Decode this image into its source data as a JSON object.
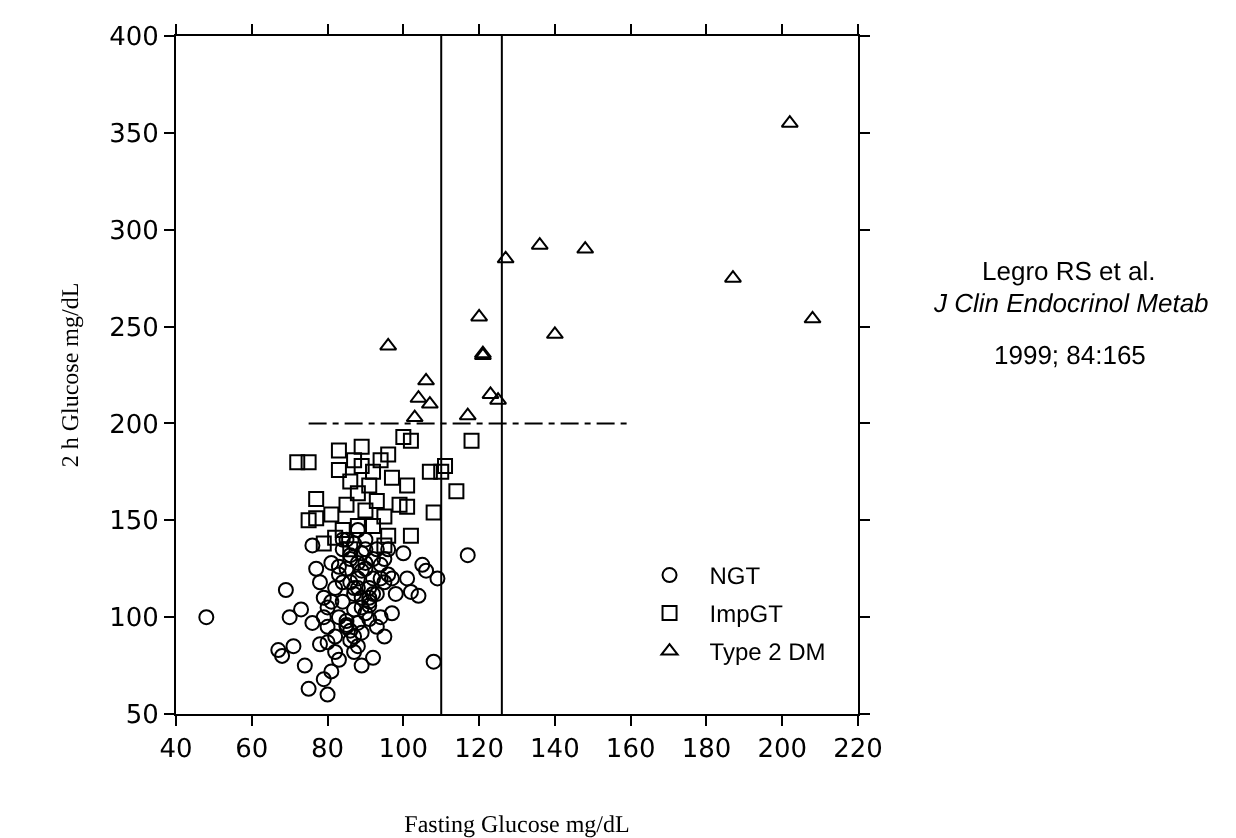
{
  "chart_data": {
    "type": "scatter",
    "xlabel": "Fasting Glucose mg/dL",
    "ylabel": "2 h Glucose mg/dL",
    "xlim": [
      40,
      220
    ],
    "xticks": [
      40,
      60,
      80,
      100,
      120,
      140,
      160,
      180,
      200,
      220
    ],
    "ylim": [
      50,
      400
    ],
    "yticks": [
      50,
      100,
      150,
      200,
      250,
      300,
      350,
      400
    ],
    "grid": false,
    "legend": "bottom right",
    "series": [
      {
        "name": "NGT",
        "color": "#000000",
        "marker": "circle",
        "x": [
          48,
          68,
          67,
          69,
          70,
          71,
          73,
          74,
          75,
          76,
          78,
          79,
          80,
          81,
          83,
          92,
          95,
          97,
          98,
          100,
          101,
          102,
          104,
          105,
          106,
          109,
          108,
          117,
          97,
          95,
          93,
          76,
          77,
          78,
          79,
          80,
          80,
          81,
          82,
          82,
          83,
          83,
          84,
          84,
          85,
          85,
          85,
          86,
          86,
          86,
          87,
          87,
          87,
          88,
          88,
          88,
          88,
          89,
          89,
          89,
          90,
          90,
          90,
          91,
          91,
          91,
          92,
          92,
          93,
          93,
          94,
          94,
          95,
          96,
          96,
          84,
          86,
          88,
          90,
          82,
          84,
          87,
          89,
          91,
          80,
          83,
          85,
          87,
          89,
          79,
          81,
          86,
          88,
          90,
          92,
          94,
          85,
          87,
          89,
          91
        ],
        "values": [
          100,
          80,
          83,
          114,
          100,
          85,
          104,
          75,
          63,
          97,
          86,
          68,
          60,
          72,
          78,
          79,
          90,
          102,
          112,
          133,
          120,
          113,
          111,
          127,
          124,
          120,
          77,
          132,
          120,
          130,
          135,
          137,
          125,
          118,
          110,
          105,
          95,
          128,
          115,
          90,
          122,
          100,
          135,
          108,
          140,
          125,
          95,
          88,
          118,
          130,
          104,
          112,
          138,
          97,
          120,
          128,
          85,
          110,
          133,
          92,
          102,
          125,
          140,
          115,
          99,
          108,
          130,
          120,
          95,
          112,
          127,
          100,
          118,
          122,
          135,
          140,
          132,
          145,
          128,
          82,
          118,
          90,
          105,
          110,
          87,
          126,
          96,
          115,
          124,
          100,
          108,
          93,
          115,
          135,
          112,
          120,
          98,
          82,
          75,
          106
        ]
      },
      {
        "name": "ImpGT",
        "color": "#000000",
        "marker": "square",
        "x": [
          72,
          75,
          83,
          89,
          96,
          94,
          87,
          83,
          89,
          92,
          97,
          100,
          102,
          107,
          110,
          111,
          114,
          118,
          77,
          77,
          75,
          81,
          82,
          85,
          88,
          90,
          93,
          95,
          99,
          101,
          101,
          102,
          96,
          108,
          86,
          91,
          84,
          88,
          92,
          79,
          86,
          95
        ],
        "values": [
          180,
          180,
          186,
          188,
          184,
          181,
          181,
          176,
          178,
          175,
          172,
          193,
          191,
          175,
          175,
          178,
          165,
          191,
          161,
          151,
          150,
          153,
          141,
          158,
          164,
          155,
          160,
          152,
          158,
          168,
          157,
          142,
          142,
          154,
          170,
          168,
          145,
          147,
          147,
          138,
          135,
          137
        ]
      },
      {
        "name": "Type 2 DM",
        "color": "#000000",
        "marker": "triangle",
        "x": [
          96,
          106,
          104,
          107,
          103,
          120,
          121,
          121,
          117,
          123,
          125,
          127,
          136,
          148,
          140,
          187,
          202,
          208
        ],
        "values": [
          240,
          222,
          213,
          210,
          203,
          255,
          235,
          236,
          204,
          215,
          212,
          285,
          292,
          290,
          246,
          275,
          355,
          254
        ]
      },
      {
        "color": "#000000",
        "marker": "none",
        "line_style": "dashed",
        "x": [
          75,
          160
        ],
        "values": [
          200,
          200
        ],
        "type": "line"
      }
    ],
    "ref_lines": [
      {
        "axis": "x",
        "value": 110,
        "color": "#000000",
        "line_style": "solid"
      },
      {
        "axis": "x",
        "value": 126,
        "color": "#000000",
        "line_style": "solid"
      }
    ],
    "annotations": [
      "Legro RS et al.",
      "J Clin Endocrinol Metab",
      "1999; 84:165"
    ]
  }
}
